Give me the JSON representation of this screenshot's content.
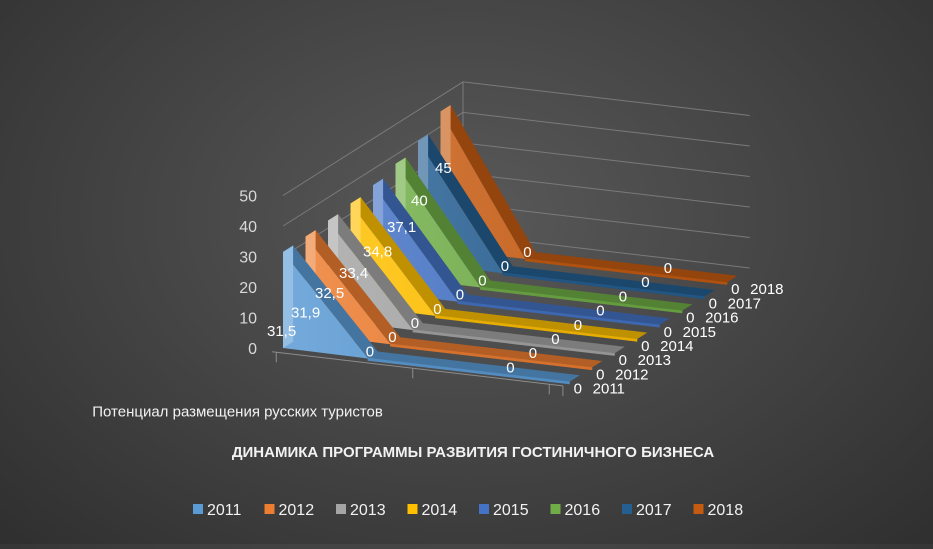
{
  "chart_data": {
    "type": "area",
    "title": "ДИНАМИКА ПРОГРАММЫ  РАЗВИТИЯ ГОСТИНИЧНОГО БИЗНЕСА",
    "categories": [
      "Потенциал размещения русских туристов",
      "",
      ""
    ],
    "y_ticks": [
      "0",
      "10",
      "20",
      "30",
      "40",
      "50"
    ],
    "ylim": [
      0,
      50
    ],
    "grid": true,
    "legend": "bottom",
    "series": [
      {
        "name": "2011",
        "values": [
          31.5,
          0,
          0
        ],
        "labels": [
          "31,5",
          "0",
          "0"
        ],
        "color": "#5b9bd5"
      },
      {
        "name": "2012",
        "values": [
          31.9,
          0,
          0
        ],
        "labels": [
          "31,9",
          "0",
          "0"
        ],
        "color": "#ed7d31"
      },
      {
        "name": "2013",
        "values": [
          32.5,
          0,
          0
        ],
        "labels": [
          "32,5",
          "0",
          "0"
        ],
        "color": "#a5a5a5"
      },
      {
        "name": "2014",
        "values": [
          33.4,
          0,
          0
        ],
        "labels": [
          "33,4",
          "0",
          "0"
        ],
        "color": "#ffc000"
      },
      {
        "name": "2015",
        "values": [
          34.8,
          0,
          0
        ],
        "labels": [
          "34,8",
          "0",
          "0"
        ],
        "color": "#4472c4"
      },
      {
        "name": "2016",
        "values": [
          37.1,
          0,
          0
        ],
        "labels": [
          "37,1",
          "0",
          "0"
        ],
        "color": "#70ad47"
      },
      {
        "name": "2017",
        "values": [
          40,
          0,
          0
        ],
        "labels": [
          "40",
          "0",
          "0"
        ],
        "color": "#255e91"
      },
      {
        "name": "2018",
        "values": [
          45,
          0,
          0
        ],
        "labels": [
          "45",
          "0",
          "0"
        ],
        "color": "#c55a11"
      }
    ]
  }
}
